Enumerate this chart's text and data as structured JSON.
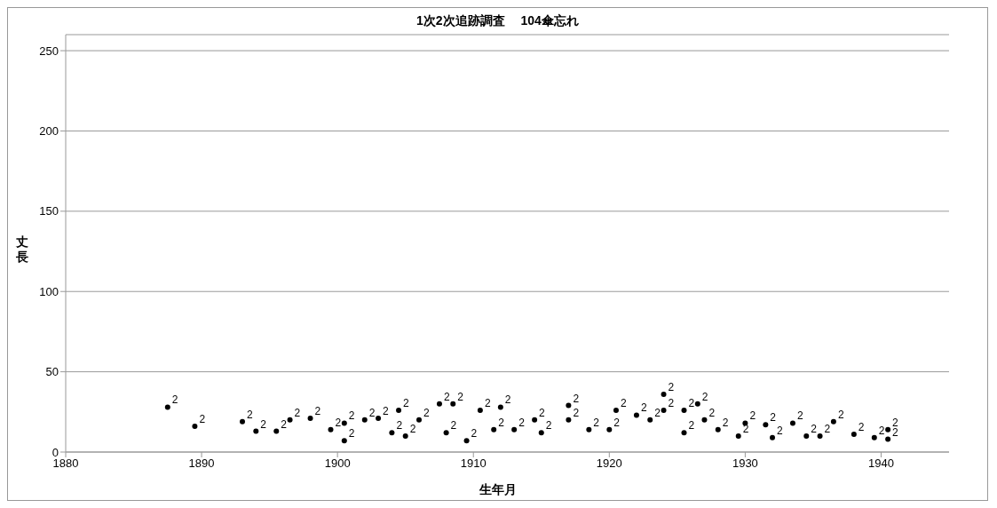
{
  "chart_data": {
    "type": "scatter",
    "title": "1次2次追跡調査　 104傘忘れ",
    "xlabel": "生年月",
    "ylabel": "丈長",
    "x": [
      1887.5,
      1889.5,
      1893,
      1894,
      1895.5,
      1896.5,
      1898,
      1899.5,
      1900.5,
      1900.5,
      1902,
      1903,
      1904.5,
      1904,
      1905,
      1906,
      1907.5,
      1908.5,
      1908,
      1909.5,
      1910.5,
      1912,
      1911.5,
      1913,
      1914.5,
      1915,
      1917,
      1917,
      1918.5,
      1920,
      1920.5,
      1922,
      1923,
      1924,
      1924,
      1925.5,
      1925.5,
      1926.5,
      1927,
      1928,
      1929.5,
      1930,
      1931.5,
      1932,
      1933.5,
      1934.5,
      1935.5,
      1936.5,
      1938,
      1939.5,
      1940.5,
      1940.5
    ],
    "values": [
      28,
      16,
      19,
      13,
      13,
      20,
      21,
      14,
      7,
      18,
      20,
      21,
      26,
      12,
      10,
      20,
      30,
      30,
      12,
      7,
      26,
      28,
      14,
      14,
      20,
      12,
      20,
      29,
      14,
      14,
      26,
      23,
      20,
      36,
      26,
      26,
      12,
      30,
      20,
      14,
      10,
      18,
      17,
      9,
      18,
      10,
      10,
      19,
      11,
      9,
      14,
      8
    ],
    "annotations": [
      {
        "text": "2",
        "x": 1887.5,
        "y": 28
      },
      {
        "text": "2",
        "x": 1889.5,
        "y": 16
      },
      {
        "text": "2",
        "x": 1893,
        "y": 19
      },
      {
        "text": "2",
        "x": 1894,
        "y": 13
      },
      {
        "text": "2",
        "x": 1895.5,
        "y": 13
      },
      {
        "text": "2",
        "x": 1896.5,
        "y": 20
      },
      {
        "text": "2",
        "x": 1898,
        "y": 21
      },
      {
        "text": "2",
        "x": 1899.5,
        "y": 14
      },
      {
        "text": "2",
        "x": 1900.5,
        "y": 7
      },
      {
        "text": "2",
        "x": 1900.5,
        "y": 18
      },
      {
        "text": "2",
        "x": 1902,
        "y": 20
      },
      {
        "text": "2",
        "x": 1903,
        "y": 21
      },
      {
        "text": "2",
        "x": 1904.5,
        "y": 26
      },
      {
        "text": "2",
        "x": 1904,
        "y": 12
      },
      {
        "text": "2",
        "x": 1905,
        "y": 10
      },
      {
        "text": "2",
        "x": 1906,
        "y": 20
      },
      {
        "text": "2",
        "x": 1907.5,
        "y": 30
      },
      {
        "text": "2",
        "x": 1908.5,
        "y": 30
      },
      {
        "text": "2",
        "x": 1908,
        "y": 12
      },
      {
        "text": "2",
        "x": 1909.5,
        "y": 7
      },
      {
        "text": "2",
        "x": 1910.5,
        "y": 26
      },
      {
        "text": "2",
        "x": 1912,
        "y": 28
      },
      {
        "text": "2",
        "x": 1911.5,
        "y": 14
      },
      {
        "text": "2",
        "x": 1913,
        "y": 14
      },
      {
        "text": "2",
        "x": 1914.5,
        "y": 20
      },
      {
        "text": "2",
        "x": 1915,
        "y": 12
      },
      {
        "text": "2",
        "x": 1917,
        "y": 20
      },
      {
        "text": "2",
        "x": 1917,
        "y": 29
      },
      {
        "text": "2",
        "x": 1918.5,
        "y": 14
      },
      {
        "text": "2",
        "x": 1920,
        "y": 14
      },
      {
        "text": "2",
        "x": 1920.5,
        "y": 26
      },
      {
        "text": "2",
        "x": 1922,
        "y": 23
      },
      {
        "text": "2",
        "x": 1923,
        "y": 20
      },
      {
        "text": "2",
        "x": 1924,
        "y": 36
      },
      {
        "text": "2",
        "x": 1924,
        "y": 26
      },
      {
        "text": "2",
        "x": 1925.5,
        "y": 26
      },
      {
        "text": "2",
        "x": 1925.5,
        "y": 12
      },
      {
        "text": "2",
        "x": 1926.5,
        "y": 30
      },
      {
        "text": "2",
        "x": 1927,
        "y": 20
      },
      {
        "text": "2",
        "x": 1928,
        "y": 14
      },
      {
        "text": "2",
        "x": 1929.5,
        "y": 10
      },
      {
        "text": "2",
        "x": 1930,
        "y": 18
      },
      {
        "text": "2",
        "x": 1931.5,
        "y": 17
      },
      {
        "text": "2",
        "x": 1932,
        "y": 9
      },
      {
        "text": "2",
        "x": 1933.5,
        "y": 18
      },
      {
        "text": "2",
        "x": 1934.5,
        "y": 10
      },
      {
        "text": "2",
        "x": 1935.5,
        "y": 10
      },
      {
        "text": "2",
        "x": 1936.5,
        "y": 19
      },
      {
        "text": "2",
        "x": 1938,
        "y": 11
      },
      {
        "text": "2",
        "x": 1939.5,
        "y": 9
      },
      {
        "text": "2",
        "x": 1940.5,
        "y": 14
      },
      {
        "text": "2",
        "x": 1940.5,
        "y": 8
      }
    ],
    "xlim": [
      1880,
      1945
    ],
    "xticks": [
      1880,
      1890,
      1900,
      1910,
      1920,
      1930,
      1940
    ],
    "ylim": [
      0,
      260
    ],
    "yticks": [
      0,
      50,
      100,
      150,
      200,
      250
    ],
    "grid": "y",
    "marker": "circle"
  }
}
